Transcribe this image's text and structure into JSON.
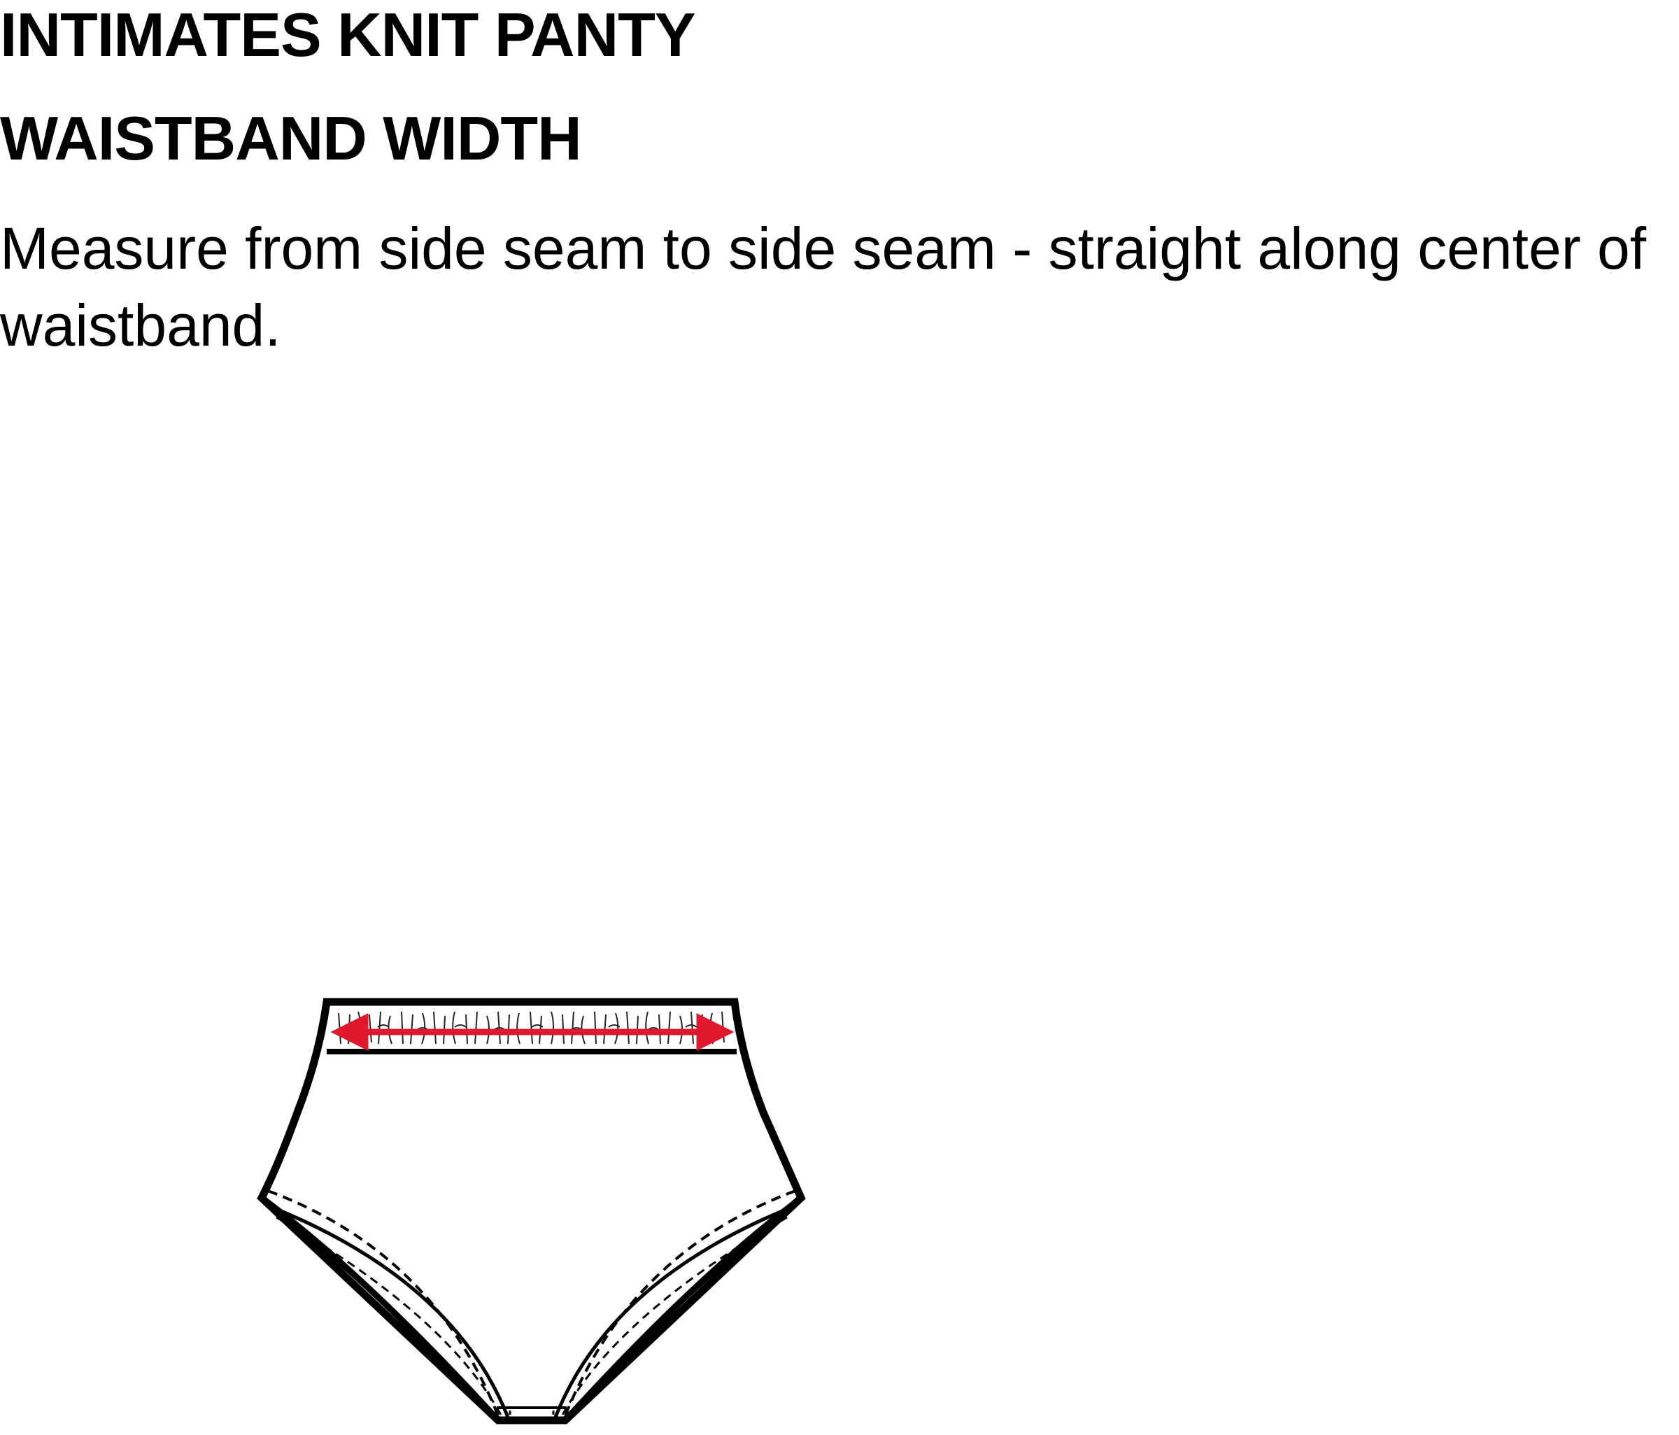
{
  "header": {
    "title": "INTIMATES KNIT PANTY",
    "subtitle": "WAISTBAND WIDTH"
  },
  "instructions": {
    "text": "Measure from side seam to side seam - straight along center of waistband."
  },
  "diagram": {
    "outline_color": "#000000",
    "arrow_color": "#e0182d",
    "background_color": "#ffffff"
  }
}
